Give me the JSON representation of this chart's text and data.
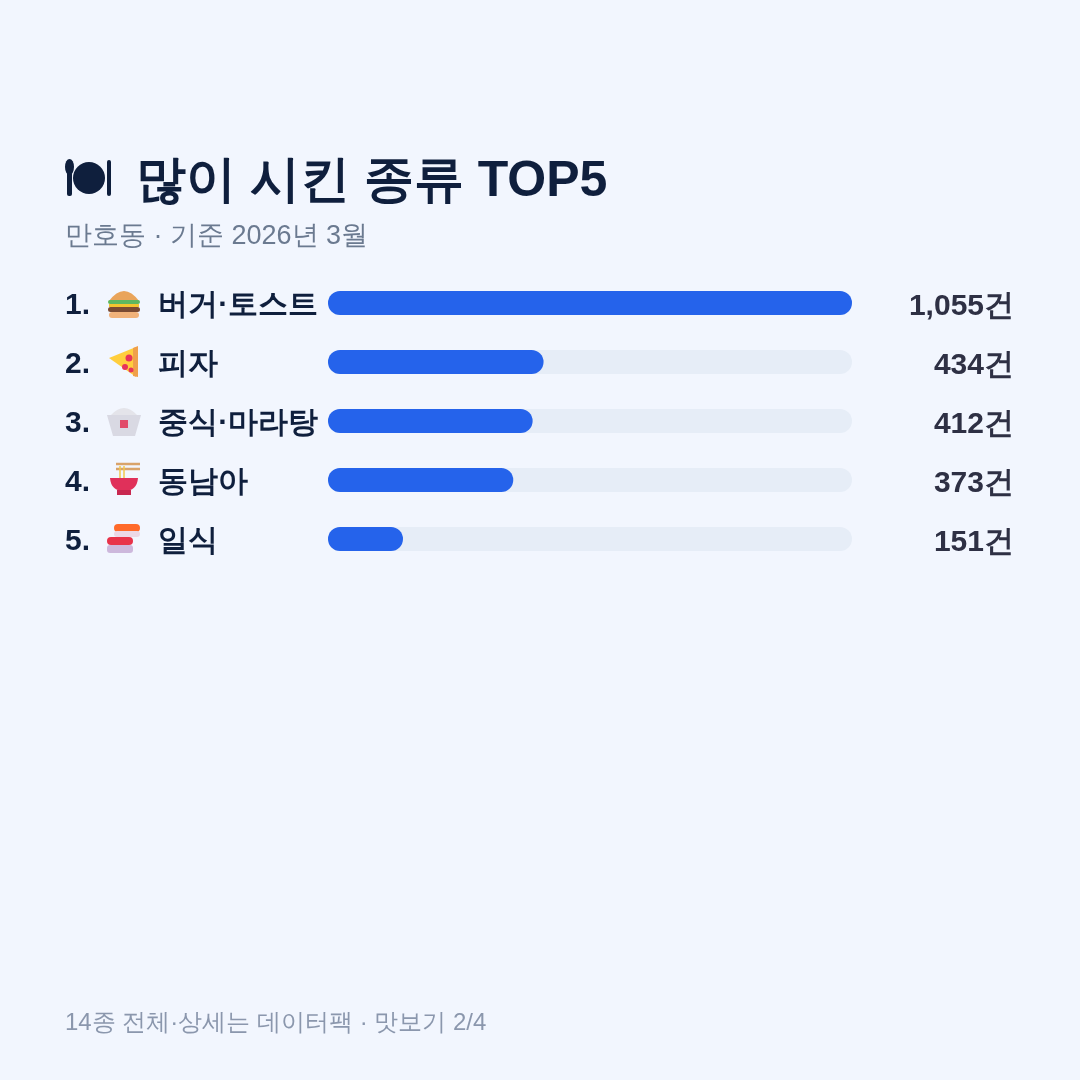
{
  "chart_data": {
    "type": "bar",
    "orientation": "horizontal",
    "title": "많이 시킨 종류 TOP5",
    "subtitle": "만호동 · 기준 2026년 3월",
    "categories": [
      "1. 버거·토스트",
      "2. 피자",
      "3. 중식·마라탕",
      "4. 동남아",
      "5. 일식"
    ],
    "values": [
      1055,
      434,
      412,
      373,
      151
    ],
    "value_labels": [
      "1,055건",
      "434건",
      "412건",
      "373건",
      "151건"
    ],
    "color": "#2563eb",
    "xlim": [
      0,
      1055
    ],
    "tick_labels": "y",
    "annotations": [
      "14종 전체·상세는 데이터팩 · 맛보기 2/4"
    ]
  }
}
